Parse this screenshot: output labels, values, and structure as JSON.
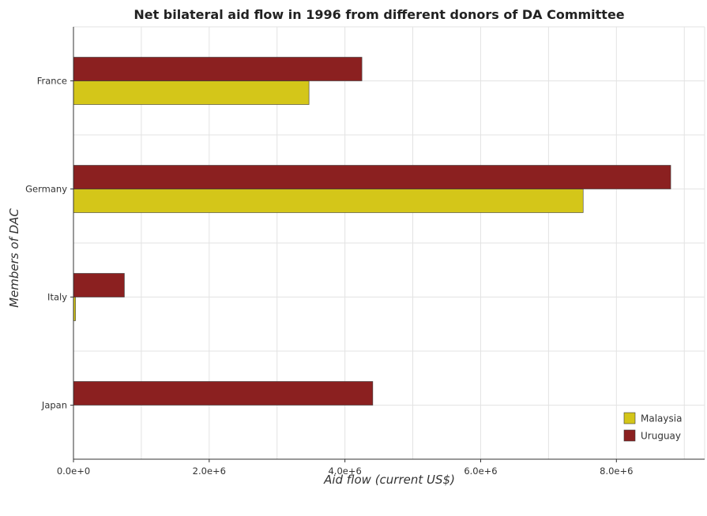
{
  "chart_data": {
    "type": "bar",
    "orientation": "horizontal",
    "title": "Net bilateral aid flow in 1996 from different donors of DA Committee",
    "xlabel": "Aid flow (current US$)",
    "ylabel": "Members of DAC",
    "categories": [
      "France",
      "Germany",
      "Italy",
      "Japan"
    ],
    "series": [
      {
        "name": "Malaysia",
        "color": "#d4c619",
        "values": [
          3470000,
          7510000,
          30000,
          0
        ]
      },
      {
        "name": "Uruguay",
        "color": "#8b2020",
        "values": [
          4250000,
          8800000,
          750000,
          4410000
        ]
      }
    ],
    "xlim": [
      0,
      9300000
    ],
    "xticks": [
      0,
      2000000,
      4000000,
      6000000,
      8000000
    ],
    "xtick_labels": [
      "0.0e+0",
      "2.0e+6",
      "4.0e+6",
      "6.0e+6",
      "8.0e+6"
    ],
    "grid": true,
    "legend_position": "bottom-right"
  }
}
